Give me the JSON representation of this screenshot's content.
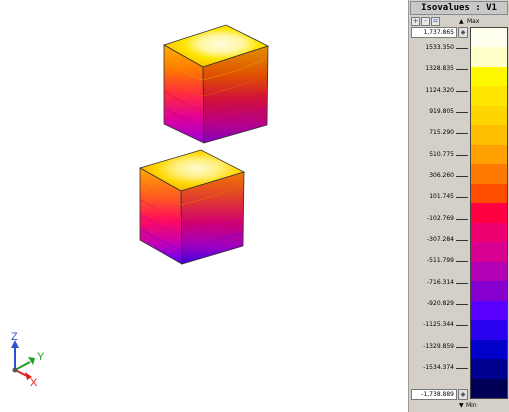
{
  "legend": {
    "title": "Isovalues : V1",
    "max_label": "Max",
    "min_label": "Min",
    "max_value": "1,737.865",
    "min_value": "-1,738.889",
    "zoom_in_icon": "zoom-in-icon",
    "zoom_out_icon": "zoom-out-icon",
    "zoom_fit_icon": "zoom-fit-icon",
    "levels": [
      "1533.350",
      "1328.835",
      "1124.320",
      "919.805",
      "715.290",
      "510.775",
      "306.260",
      "101.745",
      "-102.769",
      "-307.284",
      "-511.799",
      "-716.314",
      "-920.829",
      "-1125.344",
      "-1329.859",
      "-1534.374"
    ],
    "colors": [
      "#fffff0",
      "#ffffc8",
      "#fff900",
      "#ffe600",
      "#ffd500",
      "#ffbd00",
      "#ffa000",
      "#ff7a00",
      "#ff4d00",
      "#ff0040",
      "#ee0070",
      "#d80090",
      "#b400b4",
      "#8800d0",
      "#5a00ff",
      "#2a00f0",
      "#0000c8",
      "#000090",
      "#000055"
    ]
  },
  "axes": {
    "z": "Z",
    "y": "Y",
    "x": "X"
  },
  "model_colors": {
    "top_highlight": "#fff8c8",
    "top": "#ffe000",
    "mid": "#ff3030",
    "bottom": "#5a00ff"
  }
}
